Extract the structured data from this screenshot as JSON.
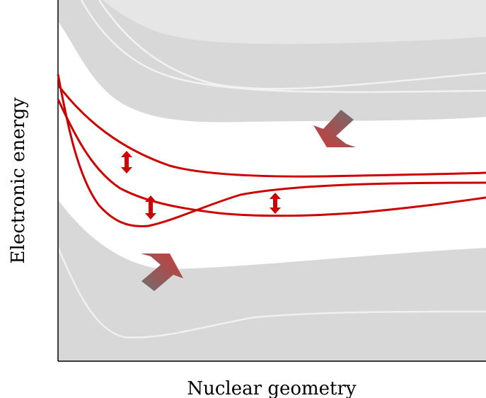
{
  "xlabel": "Nuclear geometry",
  "ylabel": "Electronic energy",
  "colors": {
    "band_gray": "#d8d8d8",
    "band_light": "#e6e6e6",
    "faint_curve": "#f2f2f2",
    "state_curve": "#cc0000",
    "arrow_red": "#c0392b",
    "arrow_gray": "#7a7a7a",
    "axis": "#000000"
  },
  "elements": {
    "state_curves": 3,
    "coupling_arrows": 3,
    "embedding_arrows": 2
  }
}
